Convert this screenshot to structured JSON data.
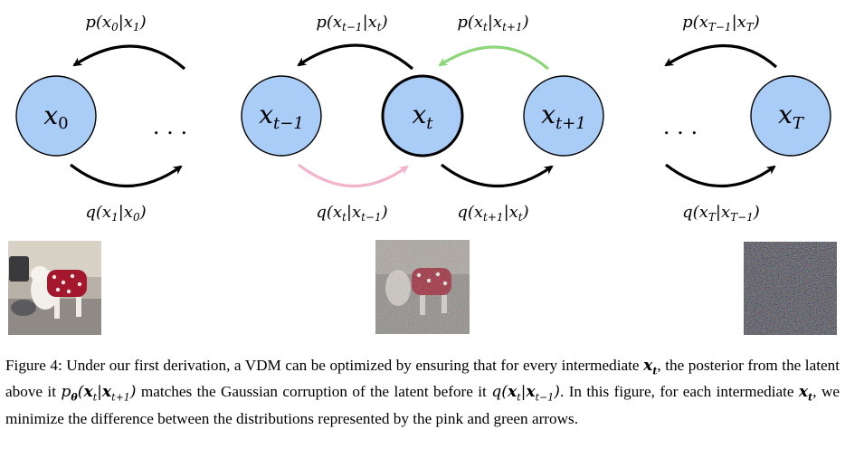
{
  "diagram": {
    "nodes": [
      {
        "id": "x0",
        "base": "x",
        "sub": "0"
      },
      {
        "id": "xt-1",
        "base": "x",
        "sub": "t−1"
      },
      {
        "id": "xt",
        "base": "x",
        "sub": "t",
        "highlighted": true
      },
      {
        "id": "xt+1",
        "base": "x",
        "sub": "t+1"
      },
      {
        "id": "xT",
        "base": "x",
        "sub": "T"
      }
    ],
    "ellipsis": ". . .",
    "top_labels": [
      {
        "pre": "p(x",
        "s1": "0",
        "mid": "|x",
        "s2": "1",
        "post": ")"
      },
      {
        "pre": "p(x",
        "s1": "t−1",
        "mid": "|x",
        "s2": "t",
        "post": ")"
      },
      {
        "pre": "p(x",
        "s1": "t",
        "mid": "|x",
        "s2": "t+1",
        "post": ")"
      },
      {
        "pre": "p(x",
        "s1": "T−1",
        "mid": "|x",
        "s2": "T",
        "post": ")"
      }
    ],
    "bottom_labels": [
      {
        "pre": "q(x",
        "s1": "1",
        "mid": "|x",
        "s2": "0",
        "post": ")"
      },
      {
        "pre": "q(x",
        "s1": "t",
        "mid": "|x",
        "s2": "t−1",
        "post": ")"
      },
      {
        "pre": "q(x",
        "s1": "t+1",
        "mid": "|x",
        "s2": "t",
        "post": ")"
      },
      {
        "pre": "q(x",
        "s1": "T",
        "mid": "|x",
        "s2": "T−1",
        "post": ")"
      }
    ],
    "colors": {
      "node_fill": "#a9cdf7",
      "arrow_black": "#000000",
      "arrow_green": "#8ed67a",
      "arrow_pink": "#f4b3cc"
    }
  },
  "images": [
    {
      "name": "clean-dog-photo"
    },
    {
      "name": "noisy-dog-photo"
    },
    {
      "name": "pure-noise-photo"
    }
  ],
  "caption": {
    "prefix": "Figure 4: ",
    "t1": "Under our first derivation, a VDM can be optimized by ensuring that for every intermediate ",
    "t2": ", the posterior from the latent above it ",
    "t3": " matches the Gaussian corruption of the latent before it ",
    "t4": ". In this figure, for each intermediate ",
    "t5": ", we minimize the difference between the distributions represented by the pink and green arrows."
  }
}
